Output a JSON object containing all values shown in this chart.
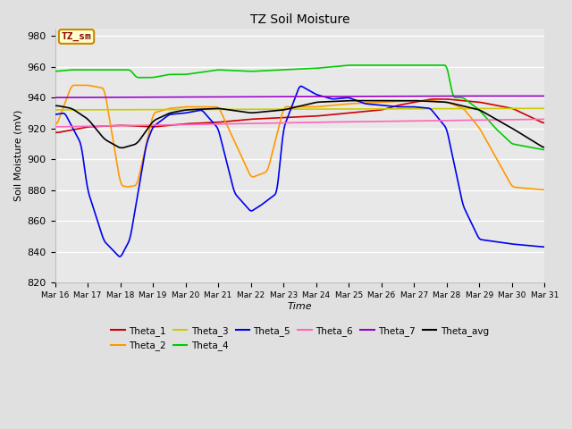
{
  "title": "TZ Soil Moisture",
  "xlabel": "Time",
  "ylabel": "Soil Moisture (mV)",
  "ylim": [
    820,
    985
  ],
  "background_color": "#e0e0e0",
  "plot_bg_color": "#e8e8e8",
  "grid_color": "#ffffff",
  "tick_labels": [
    "Mar 16",
    "Mar 17",
    "Mar 18",
    "Mar 19",
    "Mar 20",
    "Mar 21",
    "Mar 22",
    "Mar 23",
    "Mar 24",
    "Mar 25",
    "Mar 26",
    "Mar 27",
    "Mar 28",
    "Mar 29",
    "Mar 30",
    "Mar 31"
  ],
  "legend_label_box": "TZ_sm",
  "legend_box_color": "#ffffcc",
  "legend_box_border": "#cc8800",
  "series": {
    "Theta_1": {
      "color": "#cc0000",
      "lw": 1.2
    },
    "Theta_2": {
      "color": "#ff9900",
      "lw": 1.2
    },
    "Theta_3": {
      "color": "#cccc00",
      "lw": 1.2
    },
    "Theta_4": {
      "color": "#00cc00",
      "lw": 1.2
    },
    "Theta_5": {
      "color": "#0000ee",
      "lw": 1.2
    },
    "Theta_6": {
      "color": "#ff66bb",
      "lw": 1.2
    },
    "Theta_7": {
      "color": "#9900cc",
      "lw": 1.2
    },
    "Theta_avg": {
      "color": "#000000",
      "lw": 1.2
    }
  }
}
